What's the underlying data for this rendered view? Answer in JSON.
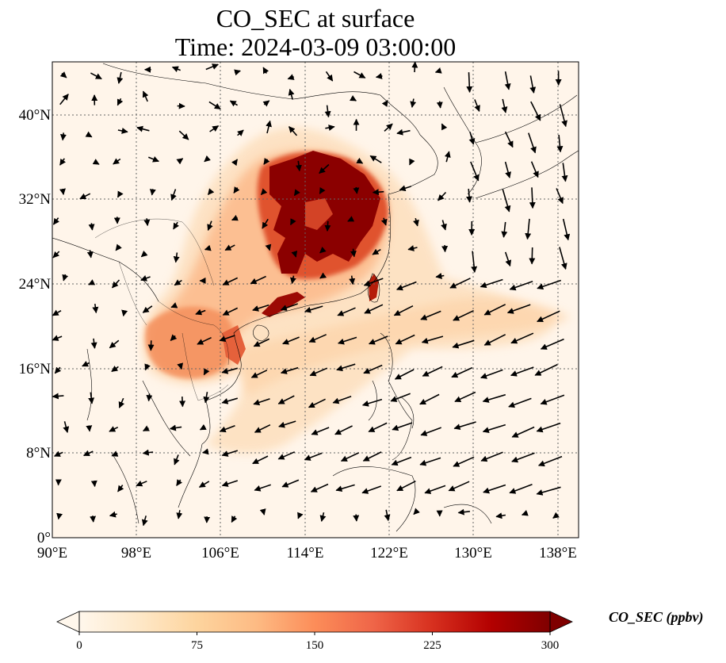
{
  "title": {
    "line1": "CO_SEC at surface",
    "line2": "Time: 2024-03-09 03:00:00"
  },
  "map": {
    "projection": "PlateCarree",
    "extent": {
      "lon_min": 90,
      "lon_max": 140,
      "lat_min": 0,
      "lat_max": 45
    },
    "gridlines": "dotted",
    "coastlines": true,
    "borders": true,
    "field": "CO_SEC",
    "vectors": "surface wind arrows"
  },
  "axes": {
    "x_ticks": [
      "90°E",
      "98°E",
      "106°E",
      "114°E",
      "122°E",
      "130°E",
      "138°E"
    ],
    "y_ticks": [
      "0°",
      "8°N",
      "16°N",
      "24°N",
      "32°N",
      "40°N"
    ]
  },
  "colorbar": {
    "title": "CO_SEC (ppbv)",
    "colormap": "OrRd",
    "extend": "both",
    "ticks": [
      "0",
      "75",
      "150",
      "225",
      "300"
    ],
    "range": [
      0,
      300
    ],
    "colors": [
      "#fff7ec",
      "#fee8c8",
      "#fdd49e",
      "#fdbb84",
      "#fc8d59",
      "#ef6548",
      "#d7301f",
      "#b30000",
      "#7f0000"
    ]
  }
}
